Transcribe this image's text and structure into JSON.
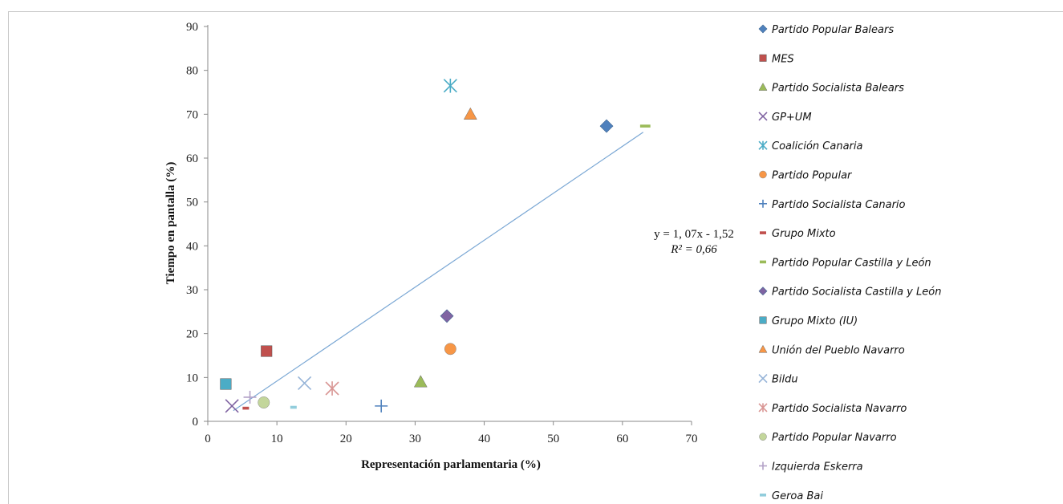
{
  "chart_data": {
    "type": "scatter",
    "title": "",
    "xlabel": "Representación parlamentaria (%)",
    "ylabel": "Tiempo en pantalla (%)",
    "xlim": [
      0,
      70
    ],
    "ylim": [
      0,
      90
    ],
    "xticks": [
      "0",
      "10",
      "20",
      "30",
      "40",
      "50",
      "60",
      "70"
    ],
    "yticks": [
      "0",
      "10",
      "20",
      "30",
      "40",
      "50",
      "60",
      "70",
      "80",
      "90"
    ],
    "grid": false,
    "legend_position": "right",
    "series": [
      {
        "name": "Partido Popular Balears",
        "marker": "diamond",
        "color": "#4f81bd",
        "x": [
          57.7
        ],
        "y": [
          67.3
        ]
      },
      {
        "name": "MES",
        "marker": "square",
        "color": "#c0504d",
        "x": [
          8.5
        ],
        "y": [
          16
        ]
      },
      {
        "name": "Partido Socialista Balears",
        "marker": "triangle",
        "color": "#9bbb59",
        "x": [
          30.8
        ],
        "y": [
          9
        ]
      },
      {
        "name": "GP+UM",
        "marker": "x",
        "color": "#8064a2",
        "x": [
          3.5
        ],
        "y": [
          3.5
        ]
      },
      {
        "name": "Coalición Canaria",
        "marker": "star",
        "color": "#4bacc6",
        "x": [
          35.1
        ],
        "y": [
          76.5
        ]
      },
      {
        "name": "Partido Popular",
        "marker": "circle",
        "color": "#f79646",
        "x": [
          35.1
        ],
        "y": [
          16.5
        ]
      },
      {
        "name": "Partido Socialista Canario",
        "marker": "plus",
        "color": "#4f81bd",
        "x": [
          25.1
        ],
        "y": [
          3.5
        ]
      },
      {
        "name": "Grupo Mixto",
        "marker": "dash",
        "color": "#c0504d",
        "x": [
          5.5
        ],
        "y": [
          3
        ]
      },
      {
        "name": "Partido Popular Castilla y León",
        "marker": "dash",
        "color": "#9bbb59",
        "x": [
          63.3
        ],
        "y": [
          67.3
        ]
      },
      {
        "name": "Partido Socialista Castilla y León",
        "marker": "diamond",
        "color": "#8064a2",
        "x": [
          34.6
        ],
        "y": [
          24
        ]
      },
      {
        "name": "Grupo Mixto (IU)",
        "marker": "square",
        "color": "#4bacc6",
        "x": [
          2.6
        ],
        "y": [
          8.5
        ]
      },
      {
        "name": "Unión del Pueblo Navarro",
        "marker": "triangle",
        "color": "#f79646",
        "x": [
          38
        ],
        "y": [
          70
        ]
      },
      {
        "name": "Bildu",
        "marker": "x",
        "color": "#95b3d7",
        "x": [
          14
        ],
        "y": [
          8.7
        ]
      },
      {
        "name": "Partido Socialista Navarro",
        "marker": "star",
        "color": "#d99694",
        "x": [
          18
        ],
        "y": [
          7.5
        ]
      },
      {
        "name": "Partido Popular Navarro",
        "marker": "circle",
        "color": "#c3d69b",
        "x": [
          8.1
        ],
        "y": [
          4.3
        ]
      },
      {
        "name": "Izquierda Eskerra",
        "marker": "plus",
        "color": "#b2a1c7",
        "x": [
          6.1
        ],
        "y": [
          5.5
        ]
      },
      {
        "name": "Geroa Bai",
        "marker": "dash",
        "color": "#92cddc",
        "x": [
          12.4
        ],
        "y": [
          3.2
        ]
      }
    ],
    "trendline": {
      "type": "linear",
      "color": "#7aa7d4",
      "x_range": [
        3.7,
        63
      ],
      "equation": "y = 1, 07x - 1,52",
      "r2_label": "R² = 0,66"
    }
  }
}
